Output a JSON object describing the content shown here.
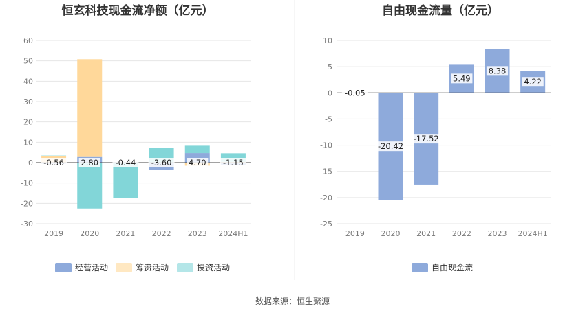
{
  "source": "数据来源：恒生聚源",
  "chart_data": [
    {
      "type": "bar",
      "stacked": true,
      "title": "恒玄科技现金流净额（亿元）",
      "categories": [
        "2019",
        "2020",
        "2021",
        "2022",
        "2023",
        "2024H1"
      ],
      "ylim": [
        -30,
        60
      ],
      "yticks": [
        60,
        50,
        40,
        30,
        20,
        10,
        0,
        -10,
        -20,
        -30
      ],
      "grid": true,
      "legend_position": "bottom",
      "series": [
        {
          "name": "经营活动",
          "color": "#8eaadb",
          "values": [
            -0.56,
            2.8,
            -0.44,
            -3.6,
            4.7,
            -1.15
          ],
          "labels": [
            "-0.56",
            "2.80",
            "-0.44",
            "-3.60",
            "4.70",
            "-1.15"
          ]
        },
        {
          "name": "筹资活动",
          "color": "#ffd89a",
          "values": [
            3.3,
            48.0,
            0.0,
            0.0,
            -1.5,
            0.4
          ]
        },
        {
          "name": "投资活动",
          "color": "#82d6d8",
          "values": [
            0.2,
            -22.5,
            -17.0,
            7.3,
            3.6,
            4.2
          ]
        }
      ]
    },
    {
      "type": "bar",
      "title": "自由现金流量（亿元）",
      "categories": [
        "2019",
        "2020",
        "2021",
        "2022",
        "2023",
        "2024H1"
      ],
      "ylim": [
        -25,
        10
      ],
      "yticks": [
        10,
        5,
        0,
        -5,
        -10,
        -15,
        -20,
        -25
      ],
      "grid": true,
      "legend_position": "bottom",
      "series": [
        {
          "name": "自由现金流",
          "color": "#8eaadb",
          "values": [
            -0.05,
            -20.42,
            -17.52,
            5.49,
            8.38,
            4.22
          ],
          "labels": [
            "-0.05",
            "-20.42",
            "-17.52",
            "5.49",
            "8.38",
            "4.22"
          ]
        }
      ]
    }
  ]
}
